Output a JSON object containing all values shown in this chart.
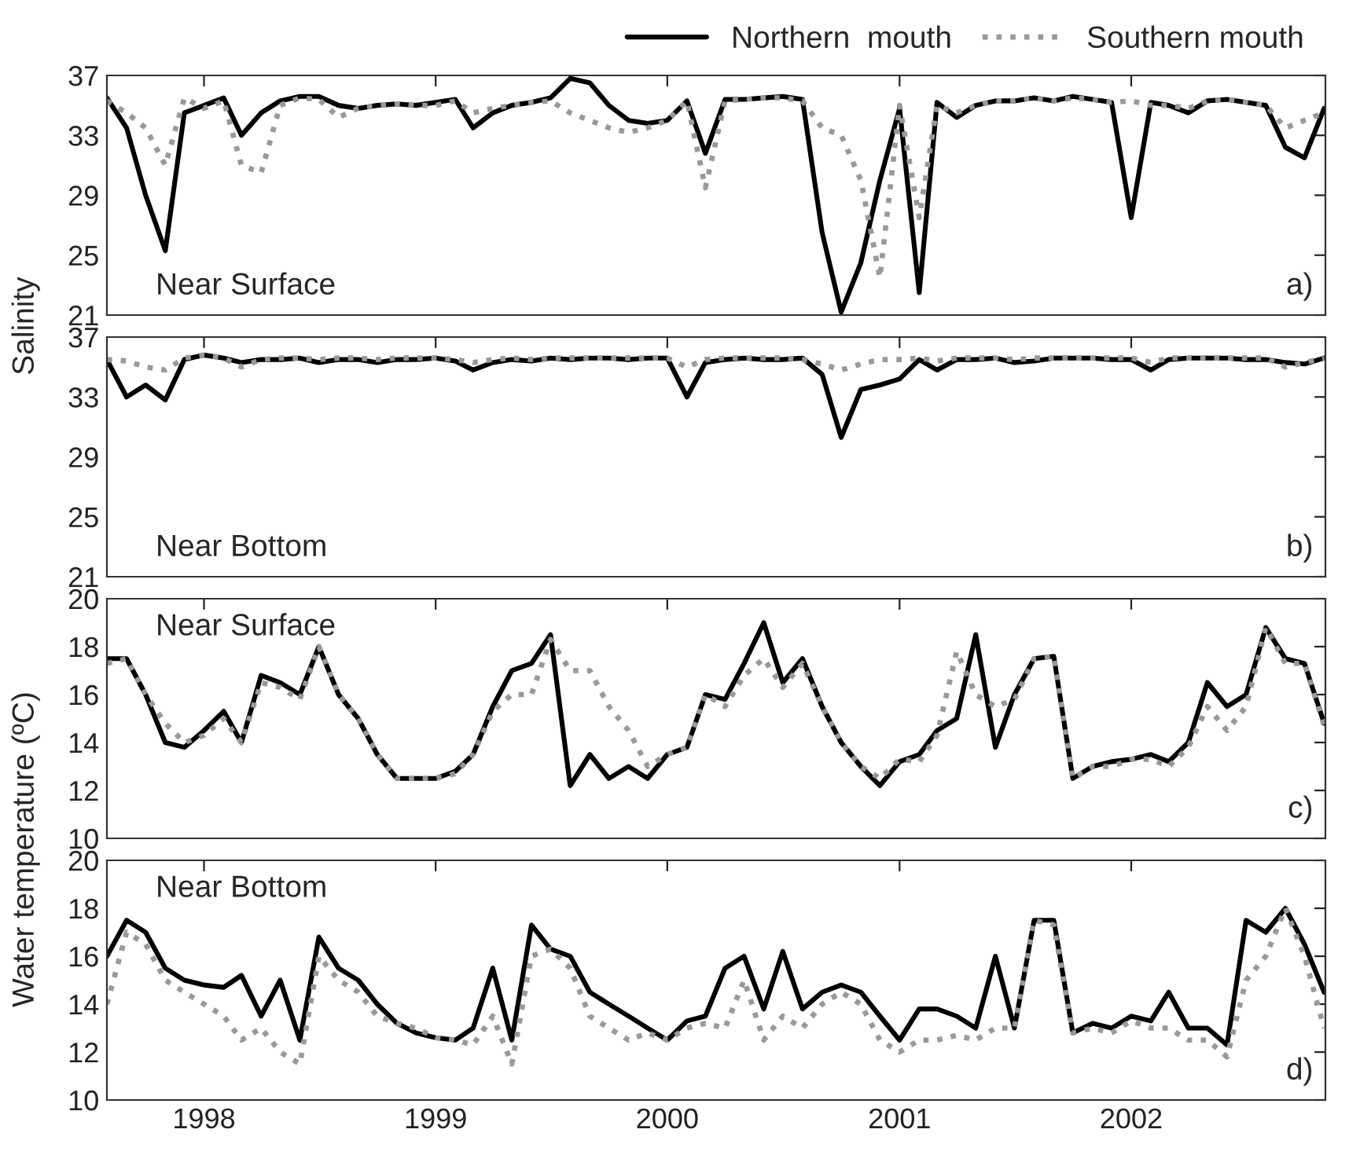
{
  "chart_data": [
    {
      "type": "line",
      "ylabel": "Salinity",
      "legend": "top right",
      "grid": false,
      "tick_labels": "y",
      "annotations": [
        "Near Surface",
        "a)"
      ],
      "x": [
        "1997-08",
        "1997-09",
        "1997-10",
        "1997-11",
        "1997-12",
        "1998-01",
        "1998-02",
        "1998-03",
        "1998-04",
        "1998-05",
        "1998-06",
        "1998-07",
        "1998-08",
        "1998-09",
        "1998-10",
        "1998-11",
        "1998-12",
        "1999-01",
        "1999-02",
        "1999-03",
        "1999-04",
        "1999-05",
        "1999-06",
        "1999-07",
        "1999-08",
        "1999-09",
        "1999-10",
        "1999-11",
        "1999-12",
        "2000-01",
        "2000-02",
        "2000-03",
        "2000-04",
        "2000-05",
        "2000-06",
        "2000-07",
        "2000-08",
        "2000-09",
        "2000-10",
        "2000-11",
        "2000-12",
        "2001-01",
        "2001-02",
        "2001-03",
        "2001-04",
        "2001-05",
        "2001-06",
        "2001-07",
        "2001-08",
        "2001-09",
        "2001-10",
        "2001-11",
        "2001-12",
        "2002-01",
        "2002-02",
        "2002-03",
        "2002-04",
        "2002-05",
        "2002-06",
        "2002-07",
        "2002-08",
        "2002-09",
        "2002-10",
        "2002-11"
      ],
      "xlim": [
        "1997-08-01",
        "2002-11-03"
      ],
      "xticks": [
        {
          "value": "1998-01-01",
          "label": null
        },
        {
          "value": "1999-01-01",
          "label": null
        },
        {
          "value": "2000-01-01",
          "label": null
        },
        {
          "value": "2001-01-01",
          "label": null
        },
        {
          "value": "2002-01-01",
          "label": null
        }
      ],
      "ylim": [
        21,
        37
      ],
      "yticks": [
        21,
        25,
        29,
        33,
        37
      ],
      "series": [
        {
          "name": "Northern  mouth",
          "color": "#000000",
          "line_style": "solid",
          "values": [
            35.5,
            33.5,
            29.0,
            25.3,
            34.5,
            35.0,
            35.5,
            33.0,
            34.5,
            35.3,
            35.6,
            35.6,
            35.0,
            34.8,
            35.0,
            35.1,
            35.0,
            35.2,
            35.4,
            33.5,
            34.5,
            35.0,
            35.2,
            35.5,
            36.8,
            36.5,
            35.0,
            34.0,
            33.8,
            34.0,
            35.3,
            31.8,
            35.4,
            35.4,
            35.5,
            35.6,
            35.4,
            26.5,
            21.2,
            24.5,
            30.0,
            34.8,
            22.5,
            35.2,
            34.2,
            35.0,
            35.3,
            35.3,
            35.5,
            35.3,
            35.6,
            35.4,
            35.2,
            27.5,
            35.2,
            35.0,
            34.5,
            35.3,
            35.4,
            35.2,
            35.0,
            32.2,
            31.5,
            34.8
          ]
        },
        {
          "name": "Southern mouth",
          "color": "#999999",
          "line_style": "dotted",
          "values": [
            35.3,
            34.5,
            33.5,
            31.0,
            35.5,
            34.8,
            35.3,
            31.0,
            30.5,
            35.0,
            35.5,
            35.4,
            34.2,
            34.8,
            35.0,
            35.1,
            35.0,
            35.0,
            35.3,
            34.5,
            34.8,
            35.0,
            35.2,
            35.3,
            34.5,
            34.0,
            33.5,
            33.2,
            33.5,
            34.0,
            35.3,
            29.5,
            35.3,
            35.4,
            35.5,
            35.5,
            35.3,
            33.5,
            33.0,
            30.0,
            23.5,
            35.0,
            27.5,
            35.0,
            34.5,
            35.0,
            35.3,
            35.3,
            35.5,
            35.3,
            35.5,
            35.4,
            35.2,
            35.3,
            35.0,
            35.0,
            34.8,
            35.3,
            35.4,
            35.2,
            35.0,
            33.5,
            34.0,
            34.5
          ]
        }
      ]
    },
    {
      "type": "line",
      "grid": false,
      "tick_labels": "y",
      "annotations": [
        "Near Bottom",
        "b)"
      ],
      "x": [
        "1997-08",
        "1997-09",
        "1997-10",
        "1997-11",
        "1997-12",
        "1998-01",
        "1998-02",
        "1998-03",
        "1998-04",
        "1998-05",
        "1998-06",
        "1998-07",
        "1998-08",
        "1998-09",
        "1998-10",
        "1998-11",
        "1998-12",
        "1999-01",
        "1999-02",
        "1999-03",
        "1999-04",
        "1999-05",
        "1999-06",
        "1999-07",
        "1999-08",
        "1999-09",
        "1999-10",
        "1999-11",
        "1999-12",
        "2000-01",
        "2000-02",
        "2000-03",
        "2000-04",
        "2000-05",
        "2000-06",
        "2000-07",
        "2000-08",
        "2000-09",
        "2000-10",
        "2000-11",
        "2000-12",
        "2001-01",
        "2001-02",
        "2001-03",
        "2001-04",
        "2001-05",
        "2001-06",
        "2001-07",
        "2001-08",
        "2001-09",
        "2001-10",
        "2001-11",
        "2001-12",
        "2002-01",
        "2002-02",
        "2002-03",
        "2002-04",
        "2002-05",
        "2002-06",
        "2002-07",
        "2002-08",
        "2002-09",
        "2002-10",
        "2002-11"
      ],
      "xlim": [
        "1997-08-01",
        "2002-11-03"
      ],
      "xticks": [
        {
          "value": "1998-01-01",
          "label": null
        },
        {
          "value": "1999-01-01",
          "label": null
        },
        {
          "value": "2000-01-01",
          "label": null
        },
        {
          "value": "2001-01-01",
          "label": null
        },
        {
          "value": "2002-01-01",
          "label": null
        }
      ],
      "ylim": [
        21,
        37
      ],
      "yticks": [
        21,
        25,
        29,
        33,
        37
      ],
      "series": [
        {
          "color": "#000000",
          "line_style": "solid",
          "values": [
            35.5,
            33.0,
            33.8,
            32.8,
            35.5,
            35.8,
            35.6,
            35.3,
            35.5,
            35.5,
            35.6,
            35.3,
            35.5,
            35.5,
            35.3,
            35.5,
            35.5,
            35.6,
            35.4,
            34.8,
            35.3,
            35.5,
            35.4,
            35.6,
            35.5,
            35.6,
            35.6,
            35.5,
            35.6,
            35.6,
            33.0,
            35.3,
            35.5,
            35.6,
            35.5,
            35.5,
            35.6,
            34.5,
            30.3,
            33.5,
            33.8,
            34.2,
            35.5,
            34.8,
            35.5,
            35.5,
            35.6,
            35.3,
            35.4,
            35.6,
            35.6,
            35.6,
            35.5,
            35.5,
            34.8,
            35.5,
            35.6,
            35.6,
            35.6,
            35.5,
            35.5,
            35.3,
            35.2,
            35.6
          ]
        },
        {
          "color": "#999999",
          "line_style": "dotted",
          "values": [
            35.5,
            35.4,
            35.0,
            34.8,
            35.6,
            35.8,
            35.6,
            35.0,
            35.5,
            35.6,
            35.6,
            35.5,
            35.6,
            35.6,
            35.5,
            35.6,
            35.6,
            35.6,
            35.5,
            35.3,
            35.5,
            35.6,
            35.5,
            35.6,
            35.6,
            35.6,
            35.6,
            35.6,
            35.6,
            35.6,
            35.0,
            35.5,
            35.6,
            35.6,
            35.6,
            35.6,
            35.5,
            35.2,
            34.8,
            35.2,
            35.5,
            35.5,
            35.6,
            35.4,
            35.6,
            35.6,
            35.6,
            35.5,
            35.6,
            35.6,
            35.6,
            35.6,
            35.6,
            35.6,
            35.3,
            35.6,
            35.6,
            35.6,
            35.6,
            35.6,
            35.6,
            35.0,
            35.3,
            35.6
          ]
        }
      ]
    },
    {
      "type": "line",
      "ylabel": "Water temperature (ºC)",
      "grid": false,
      "tick_labels": "y",
      "annotations": [
        "Near Surface",
        "c)"
      ],
      "x": [
        "1997-08",
        "1997-09",
        "1997-10",
        "1997-11",
        "1997-12",
        "1998-01",
        "1998-02",
        "1998-03",
        "1998-04",
        "1998-05",
        "1998-06",
        "1998-07",
        "1998-08",
        "1998-09",
        "1998-10",
        "1998-11",
        "1998-12",
        "1999-01",
        "1999-02",
        "1999-03",
        "1999-04",
        "1999-05",
        "1999-06",
        "1999-07",
        "1999-08",
        "1999-09",
        "1999-10",
        "1999-11",
        "1999-12",
        "2000-01",
        "2000-02",
        "2000-03",
        "2000-04",
        "2000-05",
        "2000-06",
        "2000-07",
        "2000-08",
        "2000-09",
        "2000-10",
        "2000-11",
        "2000-12",
        "2001-01",
        "2001-02",
        "2001-03",
        "2001-04",
        "2001-05",
        "2001-06",
        "2001-07",
        "2001-08",
        "2001-09",
        "2001-10",
        "2001-11",
        "2001-12",
        "2002-01",
        "2002-02",
        "2002-03",
        "2002-04",
        "2002-05",
        "2002-06",
        "2002-07",
        "2002-08",
        "2002-09",
        "2002-10",
        "2002-11"
      ],
      "xlim": [
        "1997-08-01",
        "2002-11-03"
      ],
      "xticks": [
        {
          "value": "1998-01-01",
          "label": null
        },
        {
          "value": "1999-01-01",
          "label": null
        },
        {
          "value": "2000-01-01",
          "label": null
        },
        {
          "value": "2001-01-01",
          "label": null
        },
        {
          "value": "2002-01-01",
          "label": null
        }
      ],
      "ylim": [
        10,
        20
      ],
      "yticks": [
        10,
        12,
        14,
        16,
        18,
        20
      ],
      "series": [
        {
          "color": "#000000",
          "line_style": "solid",
          "values": [
            17.5,
            17.5,
            16.0,
            14.0,
            13.8,
            14.5,
            15.3,
            14.0,
            16.8,
            16.5,
            16.0,
            18.0,
            16.0,
            15.0,
            13.5,
            12.5,
            12.5,
            12.5,
            12.8,
            13.5,
            15.5,
            17.0,
            17.3,
            18.5,
            12.2,
            13.5,
            12.5,
            13.0,
            12.5,
            13.5,
            13.8,
            16.0,
            15.8,
            17.3,
            19.0,
            16.5,
            17.5,
            15.5,
            14.0,
            13.0,
            12.2,
            13.2,
            13.5,
            14.5,
            15.0,
            18.5,
            13.8,
            16.0,
            17.5,
            17.6,
            12.5,
            13.0,
            13.2,
            13.3,
            13.5,
            13.2,
            14.0,
            16.5,
            15.5,
            16.0,
            18.8,
            17.5,
            17.3,
            14.8
          ]
        },
        {
          "color": "#999999",
          "line_style": "dotted",
          "values": [
            17.3,
            17.5,
            16.0,
            14.8,
            14.0,
            14.3,
            15.0,
            14.0,
            16.5,
            16.3,
            15.8,
            18.0,
            16.0,
            15.0,
            13.5,
            12.5,
            12.5,
            12.5,
            12.7,
            13.5,
            15.3,
            16.0,
            16.0,
            18.3,
            17.0,
            17.0,
            15.5,
            14.5,
            13.0,
            13.5,
            13.8,
            16.0,
            15.5,
            16.8,
            17.5,
            16.3,
            17.3,
            15.5,
            14.0,
            13.0,
            12.5,
            13.3,
            13.2,
            14.3,
            17.8,
            16.0,
            15.5,
            15.8,
            17.5,
            17.6,
            12.5,
            13.0,
            13.0,
            13.3,
            13.3,
            13.0,
            13.8,
            15.5,
            14.5,
            15.5,
            18.8,
            17.3,
            17.3,
            14.7
          ]
        }
      ]
    },
    {
      "type": "line",
      "grid": false,
      "annotations": [
        "Near Bottom",
        "d)"
      ],
      "x": [
        "1997-08",
        "1997-09",
        "1997-10",
        "1997-11",
        "1997-12",
        "1998-01",
        "1998-02",
        "1998-03",
        "1998-04",
        "1998-05",
        "1998-06",
        "1998-07",
        "1998-08",
        "1998-09",
        "1998-10",
        "1998-11",
        "1998-12",
        "1999-01",
        "1999-02",
        "1999-03",
        "1999-04",
        "1999-05",
        "1999-06",
        "1999-07",
        "1999-08",
        "1999-09",
        "1999-10",
        "1999-11",
        "1999-12",
        "2000-01",
        "2000-02",
        "2000-03",
        "2000-04",
        "2000-05",
        "2000-06",
        "2000-07",
        "2000-08",
        "2000-09",
        "2000-10",
        "2000-11",
        "2000-12",
        "2001-01",
        "2001-02",
        "2001-03",
        "2001-04",
        "2001-05",
        "2001-06",
        "2001-07",
        "2001-08",
        "2001-09",
        "2001-10",
        "2001-11",
        "2001-12",
        "2002-01",
        "2002-02",
        "2002-03",
        "2002-04",
        "2002-05",
        "2002-06",
        "2002-07",
        "2002-08",
        "2002-09",
        "2002-10",
        "2002-11"
      ],
      "xlim": [
        "1997-08-01",
        "2002-11-03"
      ],
      "xticks": [
        {
          "value": "1998-01-01",
          "label": "1998"
        },
        {
          "value": "1999-01-01",
          "label": "1999"
        },
        {
          "value": "2000-01-01",
          "label": "2000"
        },
        {
          "value": "2001-01-01",
          "label": "2001"
        },
        {
          "value": "2002-01-01",
          "label": "2002"
        }
      ],
      "ylim": [
        10,
        20
      ],
      "yticks": [
        10,
        12,
        14,
        16,
        18,
        20
      ],
      "series": [
        {
          "color": "#000000",
          "line_style": "solid",
          "values": [
            16.0,
            17.5,
            17.0,
            15.5,
            15.0,
            14.8,
            14.7,
            15.2,
            13.5,
            15.0,
            12.5,
            16.8,
            15.5,
            15.0,
            14.0,
            13.2,
            12.8,
            12.6,
            12.5,
            13.0,
            15.5,
            12.5,
            17.3,
            16.3,
            16.0,
            14.5,
            14.0,
            13.5,
            13.0,
            12.5,
            13.3,
            13.5,
            15.5,
            16.0,
            13.8,
            16.2,
            13.8,
            14.5,
            14.8,
            14.5,
            13.5,
            12.5,
            13.8,
            13.8,
            13.5,
            13.0,
            16.0,
            13.0,
            17.5,
            17.5,
            12.8,
            13.2,
            13.0,
            13.5,
            13.3,
            14.5,
            13.0,
            13.0,
            12.3,
            17.5,
            17.0,
            18.0,
            16.5,
            14.5
          ]
        },
        {
          "color": "#999999",
          "line_style": "dotted",
          "values": [
            14.0,
            17.0,
            16.5,
            15.0,
            14.5,
            14.0,
            13.5,
            12.5,
            13.0,
            12.0,
            11.5,
            16.0,
            15.0,
            14.5,
            13.5,
            13.2,
            13.0,
            12.6,
            12.5,
            12.3,
            13.5,
            11.5,
            16.0,
            16.3,
            15.5,
            13.5,
            13.0,
            12.5,
            12.8,
            12.5,
            13.0,
            13.2,
            13.0,
            15.0,
            12.5,
            13.5,
            13.0,
            14.0,
            14.5,
            14.0,
            12.5,
            12.0,
            12.5,
            12.5,
            12.7,
            12.5,
            13.0,
            13.0,
            17.5,
            17.3,
            12.8,
            13.0,
            12.8,
            13.3,
            13.0,
            13.0,
            12.5,
            12.5,
            11.8,
            15.0,
            16.0,
            18.0,
            16.0,
            13.0
          ]
        }
      ]
    }
  ]
}
